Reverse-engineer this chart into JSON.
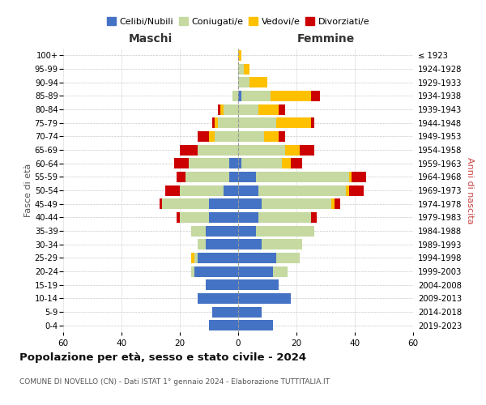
{
  "age_groups": [
    "0-4",
    "5-9",
    "10-14",
    "15-19",
    "20-24",
    "25-29",
    "30-34",
    "35-39",
    "40-44",
    "45-49",
    "50-54",
    "55-59",
    "60-64",
    "65-69",
    "70-74",
    "75-79",
    "80-84",
    "85-89",
    "90-94",
    "95-99",
    "100+"
  ],
  "birth_years": [
    "2019-2023",
    "2014-2018",
    "2009-2013",
    "2004-2008",
    "1999-2003",
    "1994-1998",
    "1989-1993",
    "1984-1988",
    "1979-1983",
    "1974-1978",
    "1969-1973",
    "1964-1968",
    "1959-1963",
    "1954-1958",
    "1949-1953",
    "1944-1948",
    "1939-1943",
    "1934-1938",
    "1929-1933",
    "1924-1928",
    "≤ 1923"
  ],
  "males": {
    "celibe": [
      10,
      9,
      14,
      11,
      15,
      14,
      11,
      11,
      10,
      10,
      5,
      3,
      3,
      0,
      0,
      0,
      0,
      0,
      0,
      0,
      0
    ],
    "coniugato": [
      0,
      0,
      0,
      0,
      1,
      1,
      3,
      5,
      10,
      16,
      15,
      15,
      14,
      14,
      8,
      7,
      5,
      2,
      0,
      0,
      0
    ],
    "vedovo": [
      0,
      0,
      0,
      0,
      0,
      1,
      0,
      0,
      0,
      0,
      0,
      0,
      0,
      0,
      2,
      1,
      1,
      0,
      0,
      0,
      0
    ],
    "divorziato": [
      0,
      0,
      0,
      0,
      0,
      0,
      0,
      0,
      1,
      1,
      5,
      3,
      5,
      6,
      4,
      1,
      1,
      0,
      0,
      0,
      0
    ]
  },
  "females": {
    "nubile": [
      12,
      8,
      18,
      14,
      12,
      13,
      8,
      6,
      7,
      8,
      7,
      6,
      1,
      0,
      0,
      0,
      0,
      1,
      0,
      0,
      0
    ],
    "coniugata": [
      0,
      0,
      0,
      0,
      5,
      8,
      14,
      20,
      18,
      24,
      30,
      32,
      14,
      16,
      9,
      13,
      7,
      10,
      4,
      2,
      0
    ],
    "vedova": [
      0,
      0,
      0,
      0,
      0,
      0,
      0,
      0,
      0,
      1,
      1,
      1,
      3,
      5,
      5,
      12,
      7,
      14,
      6,
      2,
      1
    ],
    "divorziata": [
      0,
      0,
      0,
      0,
      0,
      0,
      0,
      0,
      2,
      2,
      5,
      5,
      4,
      5,
      2,
      1,
      2,
      3,
      0,
      0,
      0
    ]
  },
  "colors": {
    "celibe": "#4472c4",
    "coniugato": "#c5d9a0",
    "vedovo": "#ffc000",
    "divorziato": "#cc0000"
  },
  "title": "Popolazione per età, sesso e stato civile - 2024",
  "subtitle": "COMUNE DI NOVELLO (CN) - Dati ISTAT 1° gennaio 2024 - Elaborazione TUTTITALIA.IT",
  "xlabel_left": "Maschi",
  "xlabel_right": "Femmine",
  "ylabel_left": "Fasce di età",
  "ylabel_right": "Anni di nascita",
  "legend_labels": [
    "Celibi/Nubili",
    "Coniugati/e",
    "Vedovi/e",
    "Divorziati/e"
  ],
  "xlim": 60,
  "background_color": "#ffffff",
  "grid_color": "#bbbbbb"
}
